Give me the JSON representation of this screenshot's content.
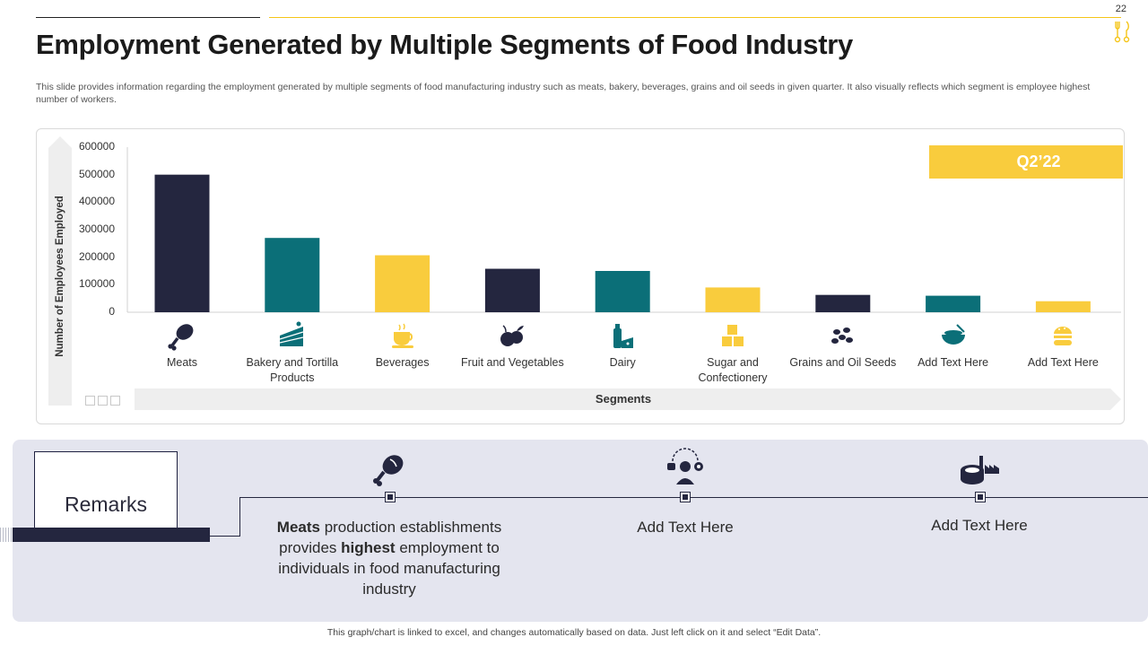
{
  "page_number": "22",
  "title": "Employment Generated by Multiple Segments of Food Industry",
  "description": "This slide provides information regarding the employment  generated  by multiple segments  of food manufacturing industry such as meats, bakery, beverages, grains and oil  seeds in given quarter. It also visually reflects which segment  is employee highest number  of workers.",
  "badge": "Q2’22",
  "colors": {
    "navy": "#24263f",
    "teal": "#0b6f78",
    "gold": "#f9cc3d",
    "panel": "#e4e5ef"
  },
  "chart_data": {
    "type": "bar",
    "xlabel": "Segments",
    "ylabel": "Number of Employees Employed",
    "ylim": [
      0,
      600000
    ],
    "yticks": [
      "600000",
      "500000",
      "400000",
      "300000",
      "200000",
      "100000",
      "0"
    ],
    "categories": [
      "Meats",
      "Bakery and Tortilla Products",
      "Beverages",
      "Fruit and Vegetables",
      "Dairy",
      "Sugar and Confectionery",
      "Grains and Oil Seeds",
      "Add Text Here",
      "Add Text Here"
    ],
    "values": [
      500000,
      270000,
      207000,
      158000,
      150000,
      90000,
      63000,
      60000,
      40000
    ],
    "bar_colors": [
      "#24263f",
      "#0b6f78",
      "#f9cc3d",
      "#24263f",
      "#0b6f78",
      "#f9cc3d",
      "#24263f",
      "#0b6f78",
      "#f9cc3d"
    ],
    "icons": [
      "meat-icon",
      "cake-icon",
      "coffee-cup-icon",
      "fruit-icon",
      "milk-cheese-icon",
      "sugar-cubes-icon",
      "seeds-icon",
      "bowl-icon",
      "burger-icon"
    ],
    "grid": false
  },
  "remarks": {
    "label": "Remarks",
    "items": [
      {
        "icon": "meat-icon",
        "parts": [
          {
            "text": "Meats",
            "bold": true
          },
          {
            "text": " production establishments provides ",
            "bold": false
          },
          {
            "text": "highest",
            "bold": true
          },
          {
            "text": " employment to individuals in food manufacturing industry",
            "bold": false
          }
        ]
      },
      {
        "icon": "worker-icon",
        "text": "Add Text Here"
      },
      {
        "icon": "factory-can-icon",
        "text": "Add Text Here"
      }
    ]
  },
  "footer": "This graph/chart is linked to excel, and changes automatically based on data. Just left click on it and select “Edit Data”."
}
